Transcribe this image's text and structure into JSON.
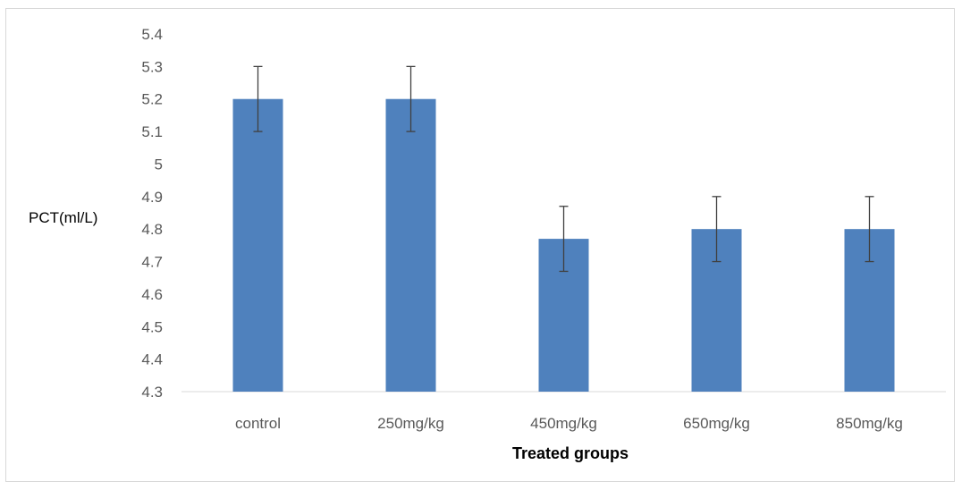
{
  "chart_data": {
    "type": "bar",
    "categories": [
      "control",
      "250mg/kg",
      "450mg/kg",
      "650mg/kg",
      "850mg/kg"
    ],
    "series": [
      {
        "values": [
          5.2,
          5.2,
          4.77,
          4.8,
          4.8
        ],
        "error": [
          0.1,
          0.1,
          0.1,
          0.1,
          0.1
        ],
        "color": "#4f81bd"
      }
    ],
    "title": "",
    "xlabel": "Treated groups",
    "ylabel": "PCT(ml/L)",
    "ylim": [
      4.3,
      5.4
    ],
    "yticks": [
      "4.3",
      "4.4",
      "4.5",
      "4.6",
      "4.7",
      "4.8",
      "4.9",
      "5",
      "5.1",
      "5.2",
      "5.3",
      "5.4"
    ],
    "grid": false,
    "legend": "none",
    "axis_color": "#d9d9d9",
    "error_bar_color": "#404040"
  }
}
